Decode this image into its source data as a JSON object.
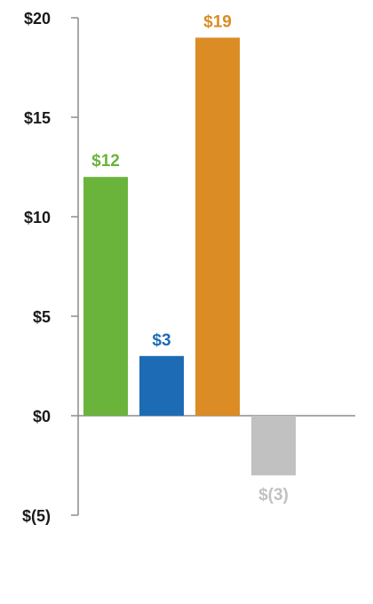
{
  "chart_data": {
    "type": "bar",
    "title": "",
    "xlabel": "",
    "ylabel": "",
    "ylim": [
      -5,
      20
    ],
    "y_ticks": [
      20,
      15,
      10,
      5,
      0,
      -5
    ],
    "y_tick_labels": [
      "$20",
      "$15",
      "$10",
      "$5",
      "$0",
      "$(5)"
    ],
    "grid": false,
    "legend": "none",
    "categories": [
      "",
      "",
      "",
      ""
    ],
    "values": [
      12,
      3,
      19,
      -3
    ],
    "data_labels": [
      "$12",
      "$3",
      "$19",
      "$(3)"
    ],
    "colors": [
      "#6ab43c",
      "#1e6bb5",
      "#db8c24",
      "#c1c1c1"
    ],
    "axis_color": "#8c8c8c"
  }
}
